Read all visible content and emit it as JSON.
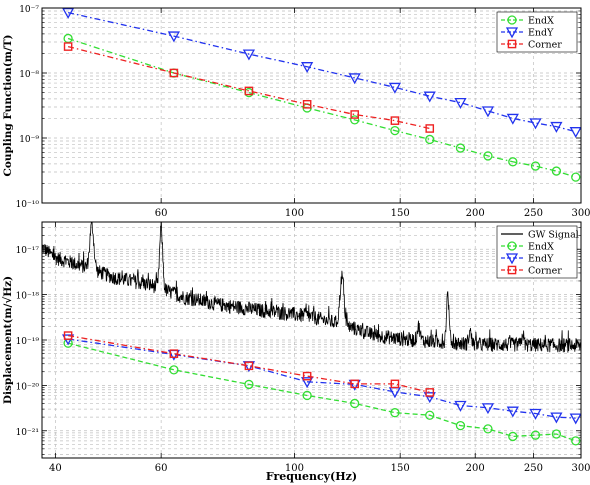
{
  "chart_data": [
    {
      "type": "line",
      "ylabel": "Coupling Function(m/T)",
      "xscale": "log",
      "yscale": "log",
      "xlim": [
        38,
        300
      ],
      "ylim_exp": [
        -10,
        -7
      ],
      "grid": true,
      "legend_position": "top-right",
      "x_ticks": [
        "60",
        "100",
        "150",
        "200",
        "250",
        "300"
      ],
      "y_ticks": [
        "10⁻¹⁰",
        "10⁻⁹",
        "10⁻⁸",
        "10⁻⁷"
      ],
      "series": [
        {
          "name": "EndX",
          "color": "#33dd33",
          "marker": "circle",
          "line": "dashdot",
          "x": [
            42,
            63,
            84,
            105,
            126,
            147,
            168,
            189,
            210,
            231,
            252,
            273,
            294
          ],
          "y": [
            3.4e-08,
            1e-08,
            5e-09,
            2.9e-09,
            1.9e-09,
            1.3e-09,
            9.5e-10,
            7e-10,
            5.3e-10,
            4.3e-10,
            3.7e-10,
            3.1e-10,
            2.5e-10
          ]
        },
        {
          "name": "EndY",
          "color": "#2233ee",
          "marker": "triangle-down",
          "line": "dashdot",
          "x": [
            42,
            63,
            84,
            105,
            126,
            147,
            168,
            189,
            210,
            231,
            252,
            273,
            294
          ],
          "y": [
            8.5e-08,
            3.7e-08,
            1.95e-08,
            1.25e-08,
            8.4e-09,
            6e-09,
            4.4e-09,
            3.5e-09,
            2.6e-09,
            2e-09,
            1.7e-09,
            1.5e-09,
            1.25e-09
          ]
        },
        {
          "name": "Corner",
          "color": "#ee2222",
          "marker": "square",
          "line": "dashdot",
          "x": [
            42,
            63,
            84,
            105,
            126,
            147,
            168
          ],
          "y": [
            2.55e-08,
            1e-08,
            5.3e-09,
            3.3e-09,
            2.3e-09,
            1.85e-09,
            1.4e-09
          ]
        }
      ]
    },
    {
      "type": "line",
      "xlabel": "Frequency(Hz)",
      "ylabel": "Displacement(m/√Hz)",
      "xscale": "log",
      "yscale": "log",
      "xlim": [
        38,
        300
      ],
      "ylim_exp": [
        -21.6,
        -16.4
      ],
      "grid": true,
      "legend_position": "top-right",
      "x_ticks": [
        "40",
        "60",
        "100",
        "150",
        "200",
        "250",
        "300"
      ],
      "y_ticks": [
        "10⁻²¹",
        "10⁻²⁰",
        "10⁻¹⁹",
        "10⁻¹⁸",
        "10⁻¹⁷"
      ],
      "gw_signal": {
        "name": "GW Signal",
        "color": "#000000",
        "baseline": {
          "x": [
            38,
            40,
            45,
            50,
            58,
            65,
            75,
            90,
            105,
            120,
            135,
            150,
            175,
            200,
            250,
            300
          ],
          "y": [
            1.1e-17,
            6.5e-18,
            4e-18,
            2.4e-18,
            1.6e-18,
            9e-19,
            6e-19,
            4.3e-19,
            3.4e-19,
            2.2e-19,
            1.3e-19,
            1.05e-19,
            9e-20,
            8e-20,
            7.8e-20,
            7.5e-20
          ]
        },
        "peaks": [
          {
            "x": 46,
            "y": 3.5e-17
          },
          {
            "x": 60,
            "y": 3e-17
          },
          {
            "x": 120,
            "y": 2.5e-18
          },
          {
            "x": 180,
            "y": 1e-18
          },
          {
            "x": 161,
            "y": 2e-19
          },
          {
            "x": 196,
            "y": 1.6e-19
          },
          {
            "x": 240,
            "y": 1.4e-19
          }
        ]
      },
      "series": [
        {
          "name": "EndX",
          "color": "#33dd33",
          "marker": "circle",
          "line": "dashed",
          "x": [
            42,
            63,
            84,
            105,
            126,
            147,
            168,
            189,
            210,
            231,
            252,
            273,
            294
          ],
          "y": [
            8.5e-20,
            2.2e-20,
            1.05e-20,
            6e-21,
            4e-21,
            2.5e-21,
            2.2e-21,
            1.3e-21,
            1.1e-21,
            7.5e-22,
            8e-22,
            8.5e-22,
            6e-22
          ]
        },
        {
          "name": "EndY",
          "color": "#2233ee",
          "marker": "triangle-down",
          "line": "dashdot",
          "x": [
            42,
            63,
            84,
            105,
            126,
            147,
            168,
            189,
            210,
            231,
            252,
            273,
            294
          ],
          "y": [
            1.05e-19,
            4.8e-20,
            2.7e-20,
            1.2e-20,
            1.05e-20,
            7.2e-21,
            5.6e-21,
            3.6e-21,
            3.2e-21,
            2.7e-21,
            2.4e-21,
            2e-21,
            1.9e-21
          ]
        },
        {
          "name": "Corner",
          "color": "#ee2222",
          "marker": "square",
          "line": "dashdot",
          "x": [
            42,
            63,
            84,
            105,
            126,
            147,
            168
          ],
          "y": [
            1.25e-19,
            5e-20,
            2.7e-20,
            1.6e-20,
            1.08e-20,
            1.08e-20,
            7e-21
          ]
        }
      ]
    }
  ]
}
